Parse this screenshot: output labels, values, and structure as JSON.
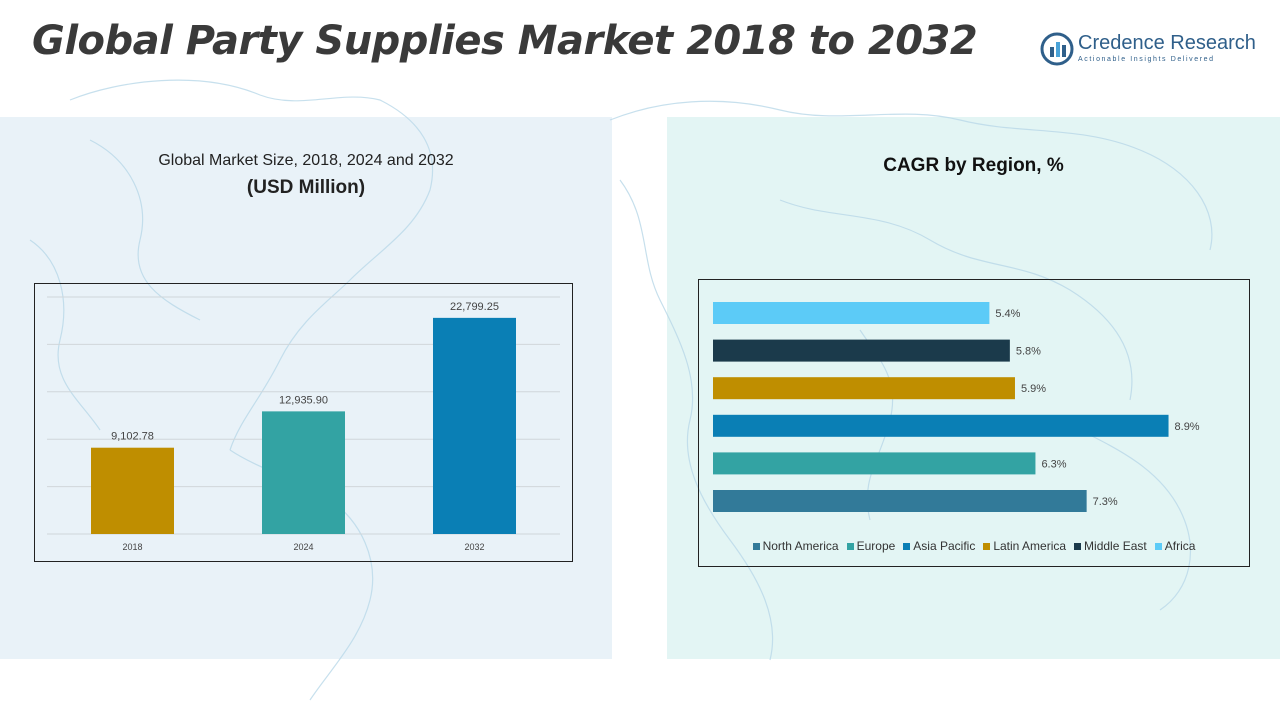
{
  "page": {
    "title": "Global Party Supplies Market 2018 to 2032"
  },
  "logo": {
    "name": "Credence Research",
    "tagline": "Actionable Insights Delivered"
  },
  "left_panel": {
    "subtitle_line1": "Global Market Size, 2018, 2024 and 2032",
    "subtitle_line2": "(USD Million)"
  },
  "right_panel": {
    "title": "CAGR by Region, %"
  },
  "colors": {
    "panel_left_bg": "#e9f2f8",
    "panel_right_bg": "#e3f5f4",
    "gold": "#bf8e00",
    "teal": "#33a3a3",
    "blue": "#0a7fb5",
    "slate": "#327a99",
    "dark": "#1b3a4b",
    "sky": "#5ccbf7"
  },
  "chart_data": [
    {
      "type": "bar",
      "title": "Global Market Size, 2018, 2024 and 2032",
      "subtitle": "(USD Million)",
      "categories": [
        "2018",
        "2024",
        "2032"
      ],
      "values": [
        9102.78,
        12935.9,
        22799.25
      ],
      "value_labels": [
        "9,102.78",
        "12,935.90",
        "22,799.25"
      ],
      "bar_colors": [
        "#bf8e00",
        "#33a3a3",
        "#0a7fb5"
      ],
      "ylim": [
        0,
        25000
      ],
      "grid": true
    },
    {
      "type": "bar",
      "orientation": "horizontal",
      "title": "CAGR by Region, %",
      "categories": [
        "Africa",
        "Middle East",
        "Latin America",
        "Asia Pacific",
        "Europe",
        "North America"
      ],
      "values": [
        5.4,
        5.8,
        5.9,
        8.9,
        6.3,
        7.3
      ],
      "value_labels": [
        "5.4%",
        "5.8%",
        "5.9%",
        "8.9%",
        "6.3%",
        "7.3%"
      ],
      "bar_colors": [
        "#5ccbf7",
        "#1b3a4b",
        "#bf8e00",
        "#0a7fb5",
        "#33a3a3",
        "#327a99"
      ],
      "xlim": [
        0,
        9.3
      ],
      "legend_position": "bottom",
      "legend": [
        "North America",
        "Europe",
        "Asia Pacific",
        "Latin America",
        "Middle East",
        "Africa"
      ],
      "legend_colors": [
        "#327a99",
        "#33a3a3",
        "#0a7fb5",
        "#bf8e00",
        "#1b3a4b",
        "#5ccbf7"
      ]
    }
  ]
}
